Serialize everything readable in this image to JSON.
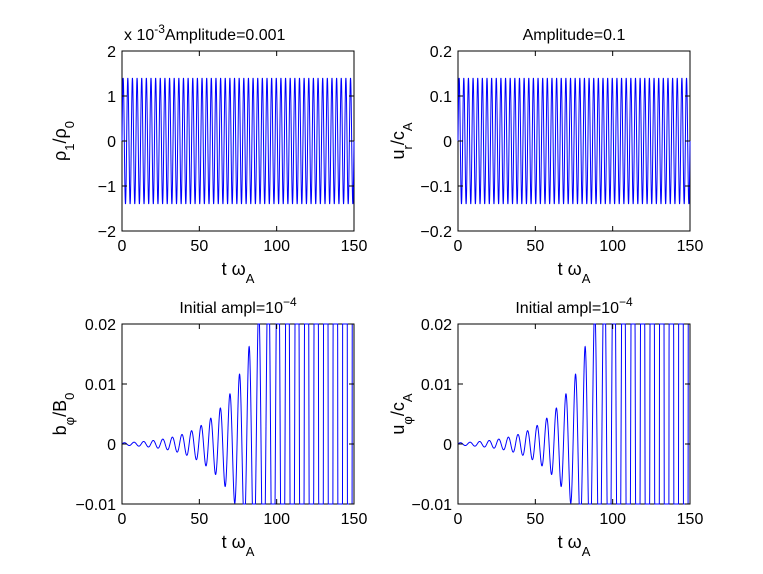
{
  "figure": {
    "background": "#ffffff",
    "line_color": "#0000ff"
  },
  "chart_data": [
    {
      "type": "line",
      "title": "Amplitude=0.001",
      "y_multiplier": "x 10",
      "y_multiplier_exp": "-3",
      "xlabel_main": "t ω",
      "xlabel_sub": "A",
      "ylabel_parts": [
        {
          "t": "ρ",
          "sub": false
        },
        {
          "t": "1",
          "sub": true
        },
        {
          "t": "/ρ",
          "sub": false
        },
        {
          "t": "0",
          "sub": true
        }
      ],
      "xlim": [
        0,
        150
      ],
      "ylim": [
        -2,
        2
      ],
      "xticks": [
        0,
        50,
        100,
        150
      ],
      "xtick_labels": [
        "0",
        "50",
        "100",
        "150"
      ],
      "yticks": [
        -2,
        -1,
        0,
        1,
        2
      ],
      "ytick_labels": [
        "−2",
        "−1",
        "0",
        "1",
        "2"
      ],
      "signal": {
        "kind": "steady",
        "amplitude": 1.4,
        "period": 3.0,
        "x_start": 0,
        "x_end": 150
      }
    },
    {
      "type": "line",
      "title": "Amplitude=0.1",
      "xlabel_main": "t ω",
      "xlabel_sub": "A",
      "ylabel_parts": [
        {
          "t": "u",
          "sub": false
        },
        {
          "t": "r",
          "sub": true
        },
        {
          "t": "/c",
          "sub": false
        },
        {
          "t": "A",
          "sub": true
        }
      ],
      "xlim": [
        0,
        150
      ],
      "ylim": [
        -0.2,
        0.2
      ],
      "xticks": [
        0,
        50,
        100,
        150
      ],
      "xtick_labels": [
        "0",
        "50",
        "100",
        "150"
      ],
      "yticks": [
        -0.2,
        -0.1,
        0,
        0.1,
        0.2
      ],
      "ytick_labels": [
        "−0.2",
        "−0.1",
        "0",
        "0.1",
        "0.2"
      ],
      "signal": {
        "kind": "steady",
        "amplitude": 0.14,
        "period": 3.0,
        "x_start": 0,
        "x_end": 150
      }
    },
    {
      "type": "line",
      "title": "Initial ampl=10",
      "title_exp": "−4",
      "xlabel_main": "t ω",
      "xlabel_sub": "A",
      "ylabel_parts": [
        {
          "t": "b",
          "sub": false
        },
        {
          "t": "φ",
          "sub": true
        },
        {
          "t": "/B",
          "sub": false
        },
        {
          "t": "0",
          "sub": true
        }
      ],
      "xlim": [
        0,
        150
      ],
      "ylim": [
        -0.01,
        0.02
      ],
      "xticks": [
        0,
        50,
        100,
        150
      ],
      "xtick_labels": [
        "0",
        "50",
        "100",
        "150"
      ],
      "yticks": [
        -0.01,
        0,
        0.01,
        0.02
      ],
      "ytick_labels": [
        "−0.01",
        "0",
        "0.01",
        "0.02"
      ],
      "signal": {
        "kind": "growing",
        "base_amplitude": 0.0002,
        "growth_rate": 0.0535,
        "period": 6.2,
        "x_start": 0,
        "x_end": 150
      }
    },
    {
      "type": "line",
      "title": "Initial ampl=10",
      "title_exp": "−4",
      "xlabel_main": "t ω",
      "xlabel_sub": "A",
      "ylabel_parts": [
        {
          "t": "u",
          "sub": false
        },
        {
          "t": "φ",
          "sub": true
        },
        {
          "t": "/c",
          "sub": false
        },
        {
          "t": "A",
          "sub": true
        }
      ],
      "xlim": [
        0,
        150
      ],
      "ylim": [
        -0.01,
        0.02
      ],
      "xticks": [
        0,
        50,
        100,
        150
      ],
      "xtick_labels": [
        "0",
        "50",
        "100",
        "150"
      ],
      "yticks": [
        -0.01,
        0,
        0.01,
        0.02
      ],
      "ytick_labels": [
        "−0.01",
        "0",
        "0.01",
        "0.02"
      ],
      "signal": {
        "kind": "growing",
        "base_amplitude": 0.0002,
        "growth_rate": 0.0535,
        "period": 6.2,
        "x_start": 0,
        "x_end": 150
      }
    }
  ]
}
